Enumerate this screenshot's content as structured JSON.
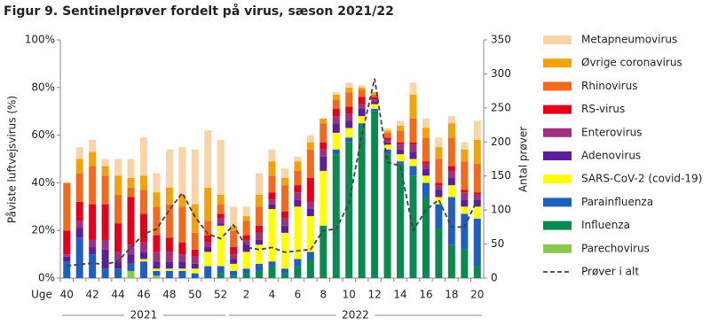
{
  "chart_data": {
    "type": "bar",
    "stacked": true,
    "title": "Figur 9. Sentinelprøver fordelt på virus, sæson 2021/22",
    "y_label": "Påviste luftvejsvirus (%)",
    "y2_label": "Antal prøver",
    "x_label": "Uge",
    "x_groups": [
      "2021",
      "2022"
    ],
    "categories": [
      "40",
      null,
      "42",
      null,
      "44",
      null,
      "46",
      null,
      "48",
      null,
      "50",
      null,
      "52",
      null,
      "2",
      null,
      "4",
      null,
      "6",
      null,
      "8",
      null,
      "10",
      null,
      "12",
      null,
      "14",
      null,
      "16",
      null,
      "18",
      null,
      "20"
    ],
    "ylim": [
      0,
      100
    ],
    "yticks": [
      {
        "value": 0,
        "label": "0%"
      },
      {
        "value": 20,
        "label": "20%"
      },
      {
        "value": 40,
        "label": "40%"
      },
      {
        "value": 60,
        "label": "60%"
      },
      {
        "value": 80,
        "label": "80%"
      },
      {
        "value": 100,
        "label": "100%"
      }
    ],
    "y2lim": [
      0,
      350
    ],
    "y2ticks": [
      0,
      50,
      100,
      150,
      200,
      250,
      300,
      350
    ],
    "grid": false,
    "legend": "right",
    "series": [
      {
        "name": "Parechovirus",
        "color": "#8cc850",
        "values": [
          0,
          0,
          0,
          0,
          0,
          3,
          0,
          1,
          0,
          0,
          0,
          0,
          0,
          0,
          0,
          0,
          0,
          0,
          0,
          0,
          0,
          0,
          0,
          0,
          0,
          0,
          0,
          0,
          0,
          0,
          0,
          0,
          0
        ]
      },
      {
        "name": "Influenza",
        "color": "#0a8a50",
        "values": [
          0,
          0,
          0,
          0,
          0,
          0,
          0,
          0,
          0,
          0,
          0,
          0,
          2,
          1,
          2,
          3,
          5,
          2,
          5,
          8,
          22,
          52,
          57,
          64,
          70,
          52,
          48,
          43,
          34,
          21,
          14,
          12,
          5
        ]
      },
      {
        "name": "Parainfluenza",
        "color": "#1f5fc0",
        "values": [
          7,
          17,
          10,
          4,
          4,
          3,
          7,
          2,
          3,
          3,
          2,
          5,
          3,
          2,
          2,
          3,
          2,
          2,
          3,
          3,
          0,
          2,
          2,
          1,
          1,
          2,
          1,
          4,
          6,
          10,
          20,
          15,
          20
        ]
      },
      {
        "name": "SARS-CoV-2 (covid-19)",
        "color": "#ffff00",
        "values": [
          0,
          0,
          0,
          0,
          0,
          0,
          1,
          1,
          1,
          1,
          2,
          6,
          17,
          3,
          7,
          8,
          22,
          15,
          22,
          15,
          23,
          7,
          4,
          3,
          2,
          2,
          3,
          3,
          3,
          3,
          5,
          3,
          5
        ]
      },
      {
        "name": "Adenovirus",
        "color": "#5b1f9a",
        "values": [
          2,
          4,
          3,
          8,
          3,
          4,
          3,
          3,
          3,
          3,
          2,
          2,
          1,
          2,
          3,
          2,
          2,
          3,
          3,
          3,
          6,
          4,
          3,
          3,
          1,
          1,
          2,
          3,
          3,
          3,
          3,
          3,
          3
        ]
      },
      {
        "name": "Enterovirus",
        "color": "#a03080",
        "values": [
          1,
          3,
          3,
          4,
          4,
          4,
          4,
          4,
          4,
          3,
          3,
          2,
          2,
          2,
          2,
          3,
          2,
          3,
          3,
          3,
          3,
          3,
          3,
          2,
          1,
          1,
          2,
          3,
          2,
          2,
          3,
          3,
          2
        ]
      },
      {
        "name": "RS-virus",
        "color": "#e3001b",
        "values": [
          10,
          8,
          15,
          15,
          12,
          20,
          12,
          7,
          6,
          5,
          3,
          3,
          2,
          3,
          2,
          3,
          3,
          3,
          3,
          10,
          3,
          3,
          3,
          3,
          1,
          1,
          1,
          1,
          1,
          1,
          2,
          1,
          1
        ]
      },
      {
        "name": "Rhinovirus",
        "color": "#f26b1d",
        "values": [
          20,
          12,
          16,
          12,
          12,
          4,
          10,
          12,
          14,
          15,
          7,
          6,
          4,
          7,
          6,
          8,
          7,
          11,
          6,
          12,
          8,
          4,
          6,
          3,
          1,
          2,
          5,
          10,
          10,
          10,
          12,
          12,
          12
        ]
      },
      {
        "name": "Øvrige coronavirus",
        "color": "#f2a20c",
        "values": [
          0,
          6,
          6,
          4,
          8,
          4,
          6,
          6,
          7,
          5,
          12,
          14,
          4,
          2,
          2,
          5,
          6,
          3,
          4,
          3,
          2,
          2,
          2,
          1,
          1,
          1,
          2,
          10,
          4,
          5,
          6,
          5,
          10
        ]
      },
      {
        "name": "Metapneumovirus",
        "color": "#f8d5a8",
        "values": [
          0,
          5,
          5,
          3,
          7,
          8,
          16,
          8,
          16,
          20,
          23,
          24,
          23,
          8,
          4,
          9,
          5,
          4,
          2,
          3,
          0,
          1,
          2,
          1,
          0,
          1,
          2,
          5,
          4,
          4,
          3,
          3,
          8
        ]
      },
      {
        "name": "Prøver i alt",
        "color": "#404040",
        "type": "line",
        "axis": "y2",
        "values": [
          18,
          20,
          22,
          20,
          25,
          45,
          65,
          72,
          100,
          125,
          90,
          65,
          58,
          78,
          45,
          42,
          45,
          38,
          40,
          42,
          70,
          72,
          110,
          210,
          293,
          170,
          165,
          70,
          100,
          115,
          75,
          75,
          115
        ]
      }
    ]
  }
}
